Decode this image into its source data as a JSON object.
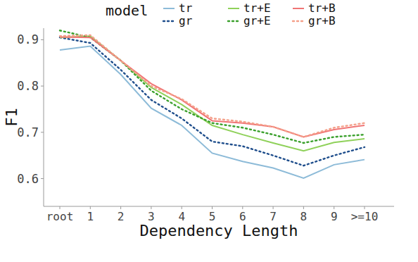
{
  "chart_data": {
    "type": "line",
    "x_label": "Dependency Length",
    "y_label": "F1",
    "legend_title": "model",
    "legend": "top",
    "categories": [
      "root",
      "1",
      "2",
      "3",
      "4",
      "5",
      "6",
      "7",
      "8",
      "9",
      ">=10"
    ],
    "ylim": [
      0.54,
      0.925
    ],
    "yticks": [
      0.6,
      0.7,
      0.8,
      0.9
    ],
    "grid": false,
    "series": [
      {
        "name": "tr",
        "color": "#8dbbd8",
        "line_style": "solid",
        "values": [
          0.878,
          0.886,
          0.825,
          0.752,
          0.715,
          0.655,
          0.637,
          0.623,
          0.601,
          0.63,
          0.641
        ]
      },
      {
        "name": "gr",
        "color": "#1f4e8c",
        "line_style": "dotted",
        "values": [
          0.905,
          0.893,
          0.835,
          0.77,
          0.73,
          0.68,
          0.67,
          0.65,
          0.628,
          0.65,
          0.668
        ]
      },
      {
        "name": "tr+E",
        "color": "#8fd15a",
        "line_style": "solid",
        "values": [
          0.905,
          0.908,
          0.855,
          0.797,
          0.76,
          0.715,
          0.695,
          0.677,
          0.66,
          0.678,
          0.686
        ]
      },
      {
        "name": "gr+E",
        "color": "#3aa02c",
        "line_style": "dotted",
        "values": [
          0.92,
          0.905,
          0.855,
          0.79,
          0.75,
          0.72,
          0.71,
          0.695,
          0.677,
          0.69,
          0.695
        ]
      },
      {
        "name": "tr+B",
        "color": "#f07575",
        "line_style": "solid",
        "values": [
          0.906,
          0.905,
          0.855,
          0.805,
          0.77,
          0.725,
          0.72,
          0.712,
          0.69,
          0.706,
          0.715
        ]
      },
      {
        "name": "gr+B",
        "color": "#f4a08a",
        "line_style": "dotted",
        "values": [
          0.908,
          0.91,
          0.855,
          0.8,
          0.772,
          0.73,
          0.723,
          0.712,
          0.69,
          0.71,
          0.72
        ]
      }
    ]
  }
}
